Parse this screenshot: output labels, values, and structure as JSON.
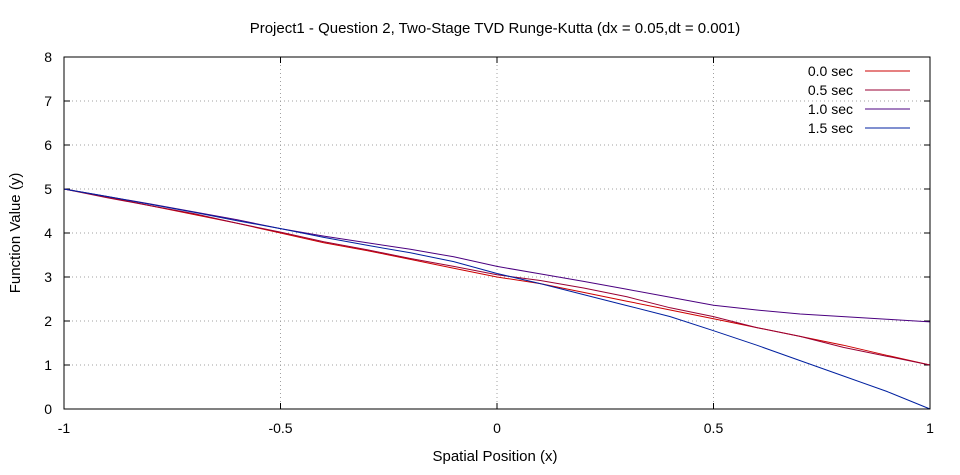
{
  "chart_data": {
    "type": "line",
    "title": "Project1 - Question 2, Two-Stage TVD Runge-Kutta (dx = 0.05,dt = 0.001)",
    "xlabel": "Spatial Position (x)",
    "ylabel": "Function Value (y)",
    "xlim": [
      -1,
      1
    ],
    "ylim": [
      0,
      8
    ],
    "xticks": [
      -1,
      -0.5,
      0,
      0.5,
      1
    ],
    "xtick_labels": [
      "-1",
      "-0.5",
      "0",
      "0.5",
      "1"
    ],
    "yticks": [
      0,
      1,
      2,
      3,
      4,
      5,
      6,
      7,
      8
    ],
    "ytick_labels": [
      "0",
      "1",
      "2",
      "3",
      "4",
      "5",
      "6",
      "7",
      "8"
    ],
    "grid": true,
    "legend_position": "top-right",
    "series": [
      {
        "name": "0.0 sec",
        "color": "#cc0000",
        "x": [
          -1,
          -0.9,
          -0.8,
          -0.7,
          -0.6,
          -0.5,
          -0.4,
          -0.3,
          -0.2,
          -0.1,
          0,
          0.1,
          0.2,
          0.3,
          0.4,
          0.5,
          0.6,
          0.7,
          0.8,
          0.9,
          1
        ],
        "y": [
          5,
          4.82,
          4.62,
          4.42,
          4.22,
          4.0,
          3.78,
          3.6,
          3.4,
          3.2,
          3.0,
          2.85,
          2.65,
          2.45,
          2.25,
          2.05,
          1.85,
          1.65,
          1.45,
          1.22,
          1.0
        ]
      },
      {
        "name": "0.5 sec",
        "color": "#990033",
        "x": [
          -1,
          -0.9,
          -0.8,
          -0.7,
          -0.6,
          -0.5,
          -0.4,
          -0.3,
          -0.2,
          -0.1,
          0,
          0.1,
          0.2,
          0.3,
          0.4,
          0.5,
          0.6,
          0.7,
          0.8,
          0.9,
          1
        ],
        "y": [
          5,
          4.8,
          4.62,
          4.44,
          4.22,
          4.02,
          3.8,
          3.62,
          3.42,
          3.24,
          3.05,
          2.92,
          2.75,
          2.55,
          2.3,
          2.1,
          1.85,
          1.65,
          1.4,
          1.2,
          1.0
        ]
      },
      {
        "name": "1.0 sec",
        "color": "#4b0080",
        "x": [
          -1,
          -0.9,
          -0.8,
          -0.7,
          -0.6,
          -0.5,
          -0.4,
          -0.3,
          -0.2,
          -0.1,
          0,
          0.1,
          0.2,
          0.3,
          0.4,
          0.5,
          0.6,
          0.7,
          0.8,
          0.9,
          1
        ],
        "y": [
          5,
          4.83,
          4.66,
          4.48,
          4.3,
          4.1,
          3.93,
          3.78,
          3.63,
          3.46,
          3.24,
          3.07,
          2.9,
          2.72,
          2.54,
          2.36,
          2.25,
          2.16,
          2.1,
          2.04,
          1.98
        ]
      },
      {
        "name": "1.5 sec",
        "color": "#0020a0",
        "x": [
          -1,
          -0.9,
          -0.8,
          -0.7,
          -0.6,
          -0.5,
          -0.4,
          -0.3,
          -0.2,
          -0.1,
          0,
          0.1,
          0.2,
          0.3,
          0.4,
          0.5,
          0.6,
          0.7,
          0.8,
          0.9,
          1
        ],
        "y": [
          5,
          4.83,
          4.65,
          4.47,
          4.28,
          4.1,
          3.9,
          3.72,
          3.55,
          3.35,
          3.08,
          2.85,
          2.6,
          2.35,
          2.1,
          1.78,
          1.45,
          1.1,
          0.75,
          0.4,
          0.0
        ]
      }
    ]
  }
}
